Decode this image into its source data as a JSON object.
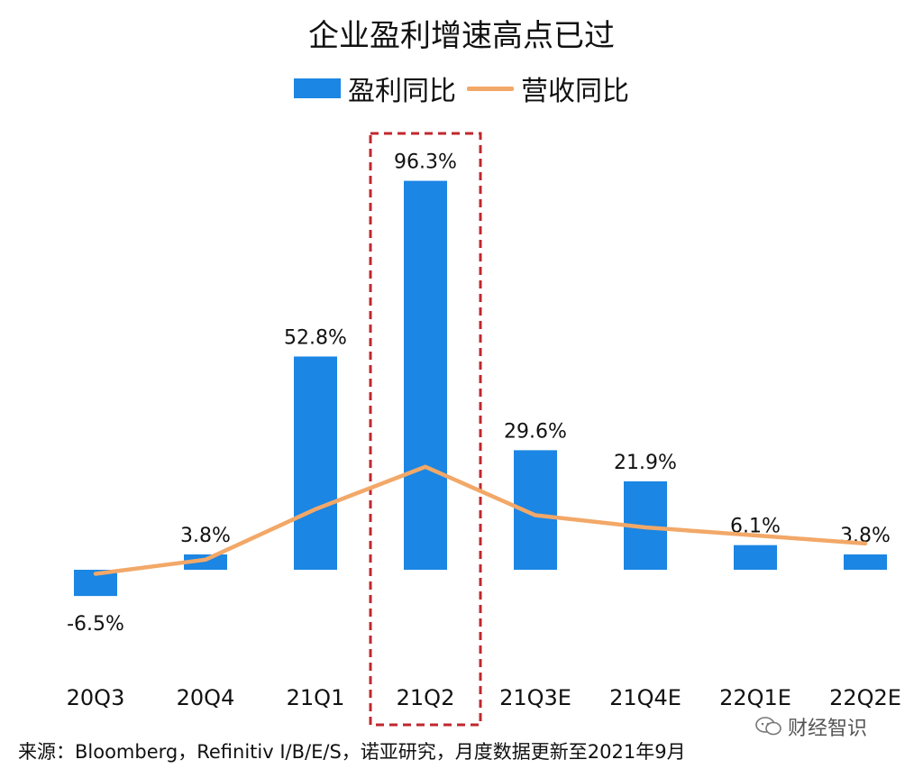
{
  "chart_data": {
    "type": "bar",
    "title": "企业盈利增速高点已过",
    "categories": [
      "20Q3",
      "20Q4",
      "21Q1",
      "21Q2",
      "21Q3E",
      "21Q4E",
      "22Q1E",
      "22Q2E"
    ],
    "series": [
      {
        "name": "盈利同比",
        "kind": "bar",
        "values": [
          -6.5,
          3.8,
          52.8,
          96.3,
          29.6,
          21.9,
          6.1,
          3.8
        ],
        "labels": [
          "-6.5%",
          "3.8%",
          "52.8%",
          "96.3%",
          "29.6%",
          "21.9%",
          "6.1%",
          "3.8%"
        ],
        "color": "#1b86e3"
      },
      {
        "name": "营收同比",
        "kind": "line",
        "values": [
          -1,
          2.5,
          15,
          25.5,
          13.5,
          10.5,
          8.5,
          6.5
        ],
        "color": "#f2a868"
      }
    ],
    "highlight_category": "21Q2",
    "highlight_color": "#c0272d",
    "ylim": [
      -15,
      105
    ],
    "grid": false,
    "legend": "top-center",
    "xlabel": "",
    "ylabel": ""
  },
  "source_note": "来源：Bloomberg，Refinitiv I/B/E/S，诺亚研究，月度数据更新至2021年9月",
  "watermark": {
    "text": "财经智识",
    "icon": "wechat-icon"
  }
}
